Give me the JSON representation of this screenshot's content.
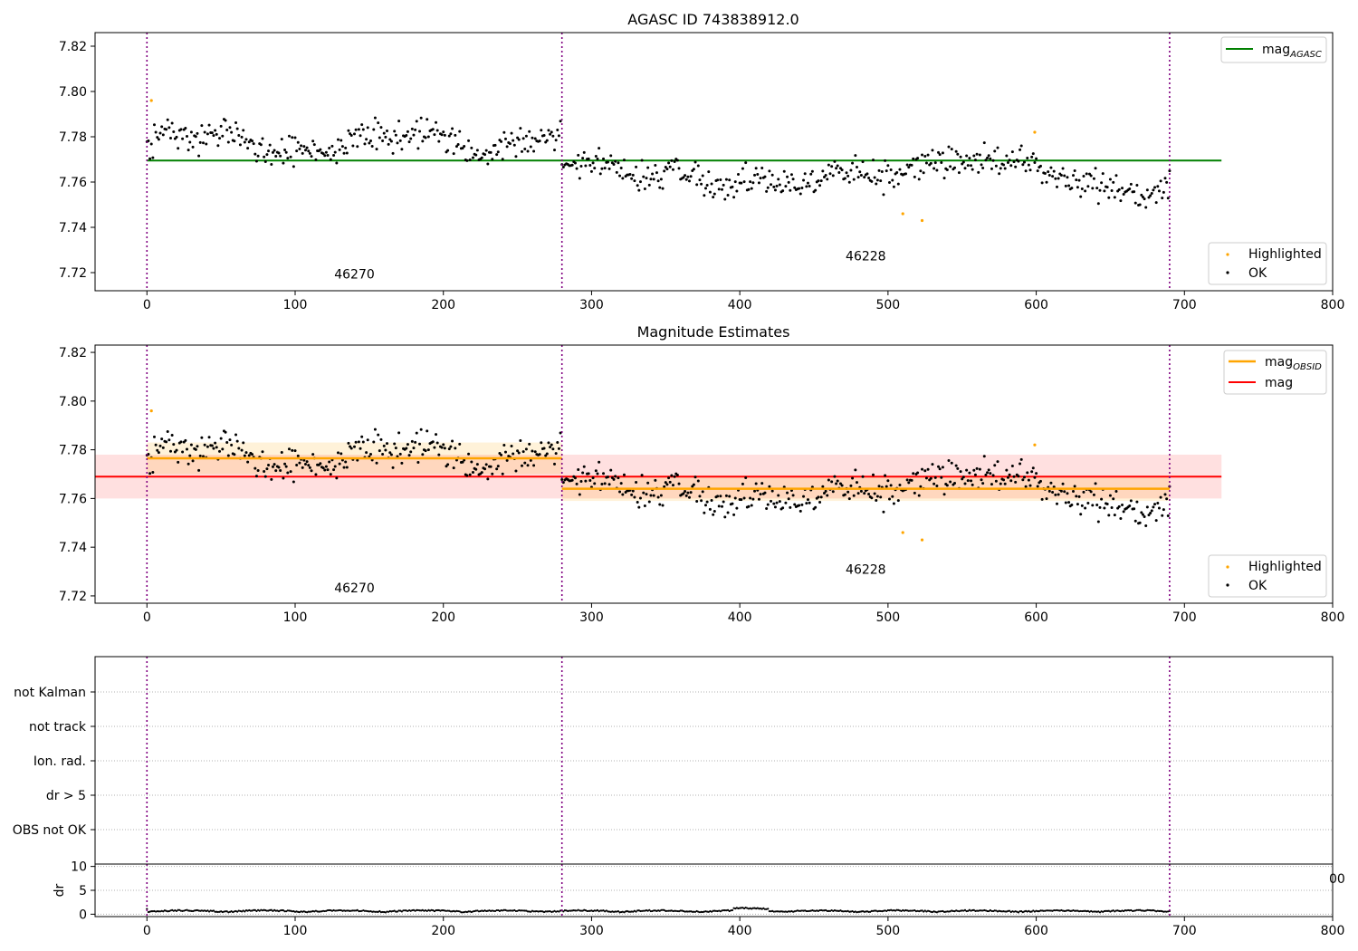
{
  "chart_data": [
    {
      "type": "scatter",
      "title": "AGASC ID 743838912.0",
      "xlim": [
        -35,
        800
      ],
      "ylim": [
        7.712,
        7.826
      ],
      "xticks": [
        0,
        100,
        200,
        300,
        400,
        500,
        600,
        700,
        800
      ],
      "yticks": [
        "7.72",
        "7.74",
        "7.76",
        "7.78",
        "7.80",
        "7.82"
      ],
      "segment_boundaries": [
        0,
        280,
        690
      ],
      "obsid_labels": [
        {
          "text": "46270",
          "x": 140,
          "y": 7.7175
        },
        {
          "text": "46228",
          "x": 485,
          "y": 7.7255
        }
      ],
      "lines": [
        {
          "name": "mag_AGASC",
          "label_main": "mag",
          "label_sub": "AGASC",
          "color": "#008000",
          "y": 7.7695,
          "x": [
            0,
            725
          ]
        }
      ],
      "scatter_legend": [
        {
          "name": "Highlighted",
          "color": "#ffa500"
        },
        {
          "name": "OK",
          "color": "#000000"
        }
      ],
      "highlighted_points": [
        [
          3,
          7.796
        ],
        [
          510,
          7.746
        ],
        [
          523,
          7.743
        ],
        [
          599,
          7.782
        ]
      ],
      "ok_points_note": "series OK: points along x = 0..690"
    },
    {
      "type": "scatter",
      "title": "Magnitude Estimates",
      "xlim": [
        -35,
        800
      ],
      "ylim": [
        7.717,
        7.823
      ],
      "xticks": [
        0,
        100,
        200,
        300,
        400,
        500,
        600,
        700,
        800
      ],
      "yticks": [
        "7.72",
        "7.74",
        "7.76",
        "7.78",
        "7.80",
        "7.82"
      ],
      "segment_boundaries": [
        0,
        280,
        690
      ],
      "obsid_labels": [
        {
          "text": "46270",
          "x": 140,
          "y": 7.7215
        },
        {
          "text": "46228",
          "x": 485,
          "y": 7.729
        }
      ],
      "lines": [
        {
          "name": "mag_OBSID",
          "label_main": "mag",
          "label_sub": "OBSID",
          "color": "#ffa500",
          "segments": [
            {
              "x": [
                0,
                280
              ],
              "y": 7.7765,
              "band": [
                7.77,
                7.783
              ]
            },
            {
              "x": [
                280,
                690
              ],
              "y": 7.764,
              "band": [
                7.759,
                7.769
              ]
            }
          ]
        },
        {
          "name": "mag",
          "label_main": "mag",
          "label_sub": "",
          "color": "#ff0000",
          "y": 7.769,
          "x": [
            -35,
            725
          ],
          "band": [
            7.76,
            7.778
          ]
        }
      ],
      "scatter_legend": [
        {
          "name": "Highlighted",
          "color": "#ffa500"
        },
        {
          "name": "OK",
          "color": "#000000"
        }
      ]
    },
    {
      "type": "scatter",
      "title": "",
      "xlim": [
        -35,
        800
      ],
      "categories": [
        "not Kalman",
        "not track",
        "Ion. rad.",
        "dr > 5",
        "OBS not OK"
      ],
      "segment_boundaries": [
        0,
        280,
        690
      ]
    },
    {
      "type": "scatter",
      "title": "",
      "ylabel": "dr",
      "xlim": [
        -35,
        800
      ],
      "ylim": [
        -0.5,
        10.5
      ],
      "xticks": [
        0,
        100,
        200,
        300,
        400,
        500,
        600,
        700,
        800
      ],
      "yticks": [
        "0",
        "5",
        "10"
      ],
      "overflow_tick_fragment": "00",
      "segment_boundaries": [
        0,
        280,
        690
      ],
      "dr_note": "dr values range 0.0 to 1.3 across x = 0..690"
    }
  ]
}
